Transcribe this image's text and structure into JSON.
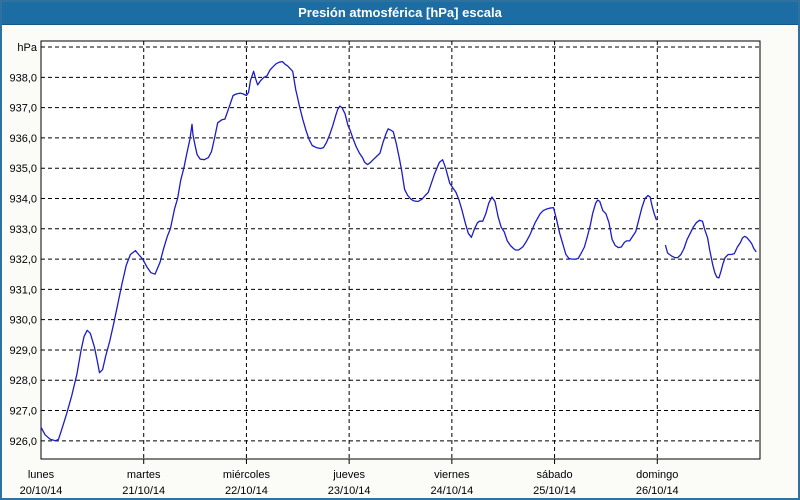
{
  "window": {
    "title": "Presión atmosférica [hPa] escala",
    "title_bg": "#1c6da4",
    "frame_color": "#2f719f",
    "bg": "#fbfcf7"
  },
  "chart_data": {
    "type": "line",
    "title": "Presión atmosférica [hPa] escala",
    "ylabel": "hPa",
    "grid": "dashed",
    "legend": "none",
    "series_color": "#1c1cc8",
    "axis_color": "#000000",
    "plot_bg": "#ffffff",
    "x_domain_days": [
      0,
      7
    ],
    "y_domain": [
      925.4,
      939.2
    ],
    "y_gridlines": [
      {
        "value": 939,
        "label": "hPa"
      },
      {
        "value": 938,
        "label": "938,0"
      },
      {
        "value": 937,
        "label": "937,0"
      },
      {
        "value": 936,
        "label": "936,0"
      },
      {
        "value": 935,
        "label": "935,0"
      },
      {
        "value": 934,
        "label": "934,0"
      },
      {
        "value": 933,
        "label": "933,0"
      },
      {
        "value": 932,
        "label": "932,0"
      },
      {
        "value": 931,
        "label": "931,0"
      },
      {
        "value": 930,
        "label": "930,0"
      },
      {
        "value": 929,
        "label": "929,0"
      },
      {
        "value": 928,
        "label": "928,0"
      },
      {
        "value": 927,
        "label": "927,0"
      },
      {
        "value": 926,
        "label": "926,0"
      }
    ],
    "x_ticks": [
      {
        "t": 0,
        "line1": "lunes",
        "line2": "20/10/14"
      },
      {
        "t": 1,
        "line1": "martes",
        "line2": "21/10/14"
      },
      {
        "t": 2,
        "line1": "miércoles",
        "line2": "22/10/14"
      },
      {
        "t": 3,
        "line1": "jueves",
        "line2": "23/10/14"
      },
      {
        "t": 4,
        "line1": "viernes",
        "line2": "24/10/14"
      },
      {
        "t": 5,
        "line1": "sábado",
        "line2": "25/10/14"
      },
      {
        "t": 6,
        "line1": "domingo",
        "line2": "26/10/14"
      }
    ],
    "series": [
      {
        "name": "presión atmosférica",
        "unit": "hPa",
        "segments": [
          [
            [
              0.0,
              926.45
            ],
            [
              0.04,
              926.2
            ],
            [
              0.09,
              926.05
            ],
            [
              0.14,
              926.0
            ],
            [
              0.17,
              926.05
            ],
            [
              0.2,
              926.35
            ],
            [
              0.25,
              926.9
            ],
            [
              0.3,
              927.5
            ],
            [
              0.35,
              928.2
            ],
            [
              0.39,
              929.0
            ],
            [
              0.42,
              929.45
            ],
            [
              0.45,
              929.65
            ],
            [
              0.48,
              929.55
            ],
            [
              0.52,
              929.1
            ],
            [
              0.55,
              928.6
            ],
            [
              0.57,
              928.25
            ],
            [
              0.6,
              928.35
            ],
            [
              0.63,
              928.8
            ],
            [
              0.67,
              929.3
            ],
            [
              0.71,
              929.9
            ],
            [
              0.75,
              930.55
            ],
            [
              0.79,
              931.2
            ],
            [
              0.83,
              931.8
            ],
            [
              0.87,
              932.15
            ],
            [
              0.92,
              932.28
            ],
            [
              0.95,
              932.15
            ],
            [
              0.99,
              932.0
            ],
            [
              1.03,
              931.75
            ],
            [
              1.07,
              931.55
            ],
            [
              1.11,
              931.5
            ],
            [
              1.16,
              931.9
            ],
            [
              1.19,
              932.3
            ],
            [
              1.23,
              932.75
            ],
            [
              1.26,
              933.0
            ],
            [
              1.3,
              933.65
            ],
            [
              1.33,
              934.0
            ],
            [
              1.36,
              934.6
            ],
            [
              1.39,
              935.0
            ],
            [
              1.42,
              935.5
            ],
            [
              1.45,
              935.95
            ],
            [
              1.47,
              936.45
            ],
            [
              1.48,
              936.1
            ],
            [
              1.5,
              935.75
            ],
            [
              1.52,
              935.45
            ],
            [
              1.55,
              935.3
            ],
            [
              1.59,
              935.28
            ],
            [
              1.63,
              935.35
            ],
            [
              1.66,
              935.55
            ],
            [
              1.69,
              936.0
            ],
            [
              1.72,
              936.5
            ],
            [
              1.76,
              936.6
            ],
            [
              1.79,
              936.62
            ],
            [
              1.82,
              936.9
            ],
            [
              1.84,
              937.1
            ],
            [
              1.87,
              937.4
            ],
            [
              1.9,
              937.45
            ],
            [
              1.94,
              937.48
            ],
            [
              1.97,
              937.45
            ],
            [
              2.0,
              937.4
            ],
            [
              2.02,
              937.5
            ],
            [
              2.04,
              937.9
            ],
            [
              2.07,
              938.2
            ],
            [
              2.09,
              937.95
            ],
            [
              2.11,
              937.75
            ],
            [
              2.14,
              937.9
            ],
            [
              2.17,
              938.0
            ],
            [
              2.2,
              938.05
            ],
            [
              2.23,
              938.25
            ],
            [
              2.26,
              938.35
            ],
            [
              2.29,
              938.45
            ],
            [
              2.32,
              938.5
            ],
            [
              2.35,
              938.52
            ],
            [
              2.38,
              938.42
            ],
            [
              2.4,
              938.38
            ],
            [
              2.45,
              938.2
            ],
            [
              2.48,
              937.6
            ],
            [
              2.5,
              937.3
            ],
            [
              2.52,
              937.0
            ],
            [
              2.55,
              936.6
            ],
            [
              2.58,
              936.25
            ],
            [
              2.61,
              935.95
            ],
            [
              2.64,
              935.75
            ],
            [
              2.68,
              935.68
            ],
            [
              2.72,
              935.65
            ],
            [
              2.75,
              935.68
            ],
            [
              2.78,
              935.85
            ],
            [
              2.81,
              936.1
            ],
            [
              2.84,
              936.4
            ],
            [
              2.87,
              936.75
            ],
            [
              2.89,
              936.95
            ],
            [
              2.91,
              937.05
            ],
            [
              2.93,
              937.0
            ],
            [
              2.96,
              936.8
            ],
            [
              2.99,
              936.4
            ],
            [
              3.01,
              936.25
            ],
            [
              3.04,
              935.95
            ],
            [
              3.07,
              935.7
            ],
            [
              3.1,
              935.5
            ],
            [
              3.13,
              935.35
            ],
            [
              3.15,
              935.2
            ],
            [
              3.18,
              935.12
            ],
            [
              3.21,
              935.2
            ],
            [
              3.24,
              935.3
            ],
            [
              3.27,
              935.4
            ],
            [
              3.3,
              935.5
            ],
            [
              3.33,
              935.85
            ],
            [
              3.36,
              936.15
            ],
            [
              3.38,
              936.3
            ],
            [
              3.41,
              936.25
            ],
            [
              3.43,
              936.2
            ],
            [
              3.46,
              935.8
            ],
            [
              3.49,
              935.3
            ],
            [
              3.51,
              934.95
            ],
            [
              3.54,
              934.3
            ],
            [
              3.57,
              934.1
            ],
            [
              3.6,
              933.98
            ],
            [
              3.63,
              933.92
            ],
            [
              3.67,
              933.9
            ],
            [
              3.71,
              933.98
            ],
            [
              3.74,
              934.1
            ],
            [
              3.77,
              934.2
            ],
            [
              3.8,
              934.5
            ],
            [
              3.83,
              934.8
            ],
            [
              3.86,
              935.05
            ],
            [
              3.88,
              935.2
            ],
            [
              3.91,
              935.28
            ],
            [
              3.94,
              935.0
            ],
            [
              3.98,
              934.5
            ],
            [
              4.01,
              934.35
            ],
            [
              4.04,
              934.2
            ],
            [
              4.07,
              933.95
            ],
            [
              4.1,
              933.6
            ],
            [
              4.13,
              933.2
            ],
            [
              4.16,
              932.85
            ],
            [
              4.19,
              932.72
            ],
            [
              4.22,
              933.0
            ],
            [
              4.25,
              933.2
            ],
            [
              4.27,
              933.25
            ],
            [
              4.3,
              933.25
            ],
            [
              4.33,
              933.5
            ],
            [
              4.36,
              933.85
            ],
            [
              4.39,
              934.05
            ],
            [
              4.42,
              933.9
            ],
            [
              4.45,
              933.4
            ],
            [
              4.48,
              933.05
            ],
            [
              4.51,
              932.9
            ],
            [
              4.54,
              932.6
            ],
            [
              4.57,
              932.45
            ],
            [
              4.6,
              932.35
            ],
            [
              4.62,
              932.3
            ],
            [
              4.65,
              932.3
            ],
            [
              4.69,
              932.4
            ],
            [
              4.72,
              932.55
            ],
            [
              4.76,
              932.8
            ],
            [
              4.81,
              933.2
            ],
            [
              4.86,
              933.5
            ],
            [
              4.89,
              933.6
            ],
            [
              4.92,
              933.65
            ],
            [
              4.95,
              933.68
            ],
            [
              4.99,
              933.7
            ],
            [
              5.02,
              933.3
            ],
            [
              5.05,
              932.85
            ],
            [
              5.08,
              932.5
            ],
            [
              5.11,
              932.15
            ],
            [
              5.14,
              932.02
            ],
            [
              5.17,
              932.0
            ],
            [
              5.2,
              932.0
            ],
            [
              5.23,
              932.02
            ],
            [
              5.26,
              932.2
            ],
            [
              5.29,
              932.4
            ],
            [
              5.32,
              932.75
            ],
            [
              5.35,
              933.15
            ],
            [
              5.37,
              933.5
            ],
            [
              5.4,
              933.85
            ],
            [
              5.42,
              933.95
            ],
            [
              5.44,
              933.9
            ],
            [
              5.47,
              933.6
            ],
            [
              5.5,
              933.5
            ],
            [
              5.53,
              933.2
            ],
            [
              5.56,
              932.65
            ],
            [
              5.59,
              932.45
            ],
            [
              5.62,
              932.38
            ],
            [
              5.65,
              932.4
            ],
            [
              5.68,
              932.55
            ],
            [
              5.7,
              932.6
            ],
            [
              5.73,
              932.6
            ],
            [
              5.76,
              932.75
            ],
            [
              5.79,
              932.9
            ],
            [
              5.82,
              933.3
            ],
            [
              5.85,
              933.7
            ],
            [
              5.88,
              934.0
            ],
            [
              5.91,
              934.1
            ],
            [
              5.93,
              934.05
            ],
            [
              5.95,
              933.75
            ],
            [
              5.97,
              933.5
            ],
            [
              5.99,
              933.3
            ]
          ],
          [
            [
              6.08,
              932.45
            ],
            [
              6.1,
              932.2
            ],
            [
              6.14,
              932.1
            ],
            [
              6.17,
              932.05
            ],
            [
              6.2,
              932.05
            ],
            [
              6.23,
              932.15
            ],
            [
              6.26,
              932.35
            ],
            [
              6.29,
              932.65
            ],
            [
              6.32,
              932.85
            ],
            [
              6.35,
              933.05
            ],
            [
              6.38,
              933.2
            ],
            [
              6.41,
              933.28
            ],
            [
              6.44,
              933.25
            ],
            [
              6.46,
              933.0
            ],
            [
              6.49,
              932.7
            ],
            [
              6.51,
              932.3
            ],
            [
              6.54,
              931.8
            ],
            [
              6.56,
              931.55
            ],
            [
              6.58,
              931.4
            ],
            [
              6.6,
              931.38
            ],
            [
              6.62,
              931.6
            ],
            [
              6.64,
              931.85
            ],
            [
              6.66,
              932.05
            ],
            [
              6.69,
              932.15
            ],
            [
              6.72,
              932.15
            ],
            [
              6.75,
              932.18
            ],
            [
              6.78,
              932.4
            ],
            [
              6.81,
              932.55
            ],
            [
              6.83,
              932.7
            ],
            [
              6.85,
              932.75
            ],
            [
              6.87,
              932.72
            ],
            [
              6.9,
              932.6
            ],
            [
              6.92,
              932.5
            ],
            [
              6.94,
              932.35
            ],
            [
              6.96,
              932.25
            ]
          ]
        ]
      }
    ]
  }
}
